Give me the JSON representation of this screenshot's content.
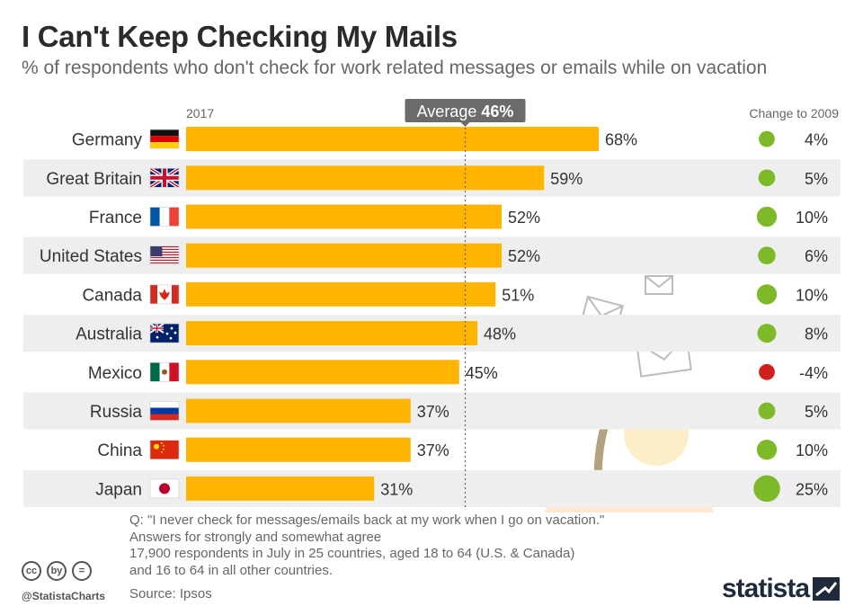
{
  "title": "I Can't Keep Checking My Mails",
  "subtitle": "% of respondents who don't check for work related messages or emails while on vacation",
  "colors": {
    "bar": "#FFB400",
    "positive": "#7DB928",
    "negative": "#D0201B",
    "stripe": "#EEEEEE",
    "text": "#333333"
  },
  "chart_data": {
    "type": "bar",
    "orientation": "horizontal",
    "year_label": "2017",
    "change_header": "Change to 2009",
    "average_label": "Average",
    "average_value_label": "46%",
    "average": 46,
    "categories": [
      "Germany",
      "Great Britain",
      "France",
      "United States",
      "Canada",
      "Australia",
      "Mexico",
      "Russia",
      "China",
      "Japan"
    ],
    "values": [
      68,
      59,
      52,
      52,
      51,
      48,
      45,
      37,
      37,
      31
    ],
    "value_labels": [
      "68%",
      "59%",
      "52%",
      "52%",
      "51%",
      "48%",
      "45%",
      "37%",
      "37%",
      "31%"
    ],
    "change_2009": [
      4,
      5,
      10,
      6,
      10,
      8,
      -4,
      5,
      10,
      25
    ],
    "change_labels": [
      "4%",
      "5%",
      "10%",
      "6%",
      "10%",
      "8%",
      "-4%",
      "5%",
      "10%",
      "25%"
    ],
    "flags": [
      "germany-flag",
      "uk-flag",
      "france-flag",
      "usa-flag",
      "canada-flag",
      "australia-flag",
      "mexico-flag",
      "russia-flag",
      "china-flag",
      "japan-flag"
    ]
  },
  "footnote": {
    "lines": [
      "Q: \"I never check for messages/emails back at my work when I go on vacation.\"",
      "Answers for strongly and somewhat agree",
      "17,900 respondents in July in 25 countries, aged 18 to 64 (U.S. & Canada)",
      "and 16 to 64 in all other countries."
    ],
    "source": "Source: Ipsos"
  },
  "branding": {
    "handle": "@StatistaCharts",
    "logo": "statista",
    "license_icons": [
      "cc",
      "by",
      "="
    ]
  }
}
